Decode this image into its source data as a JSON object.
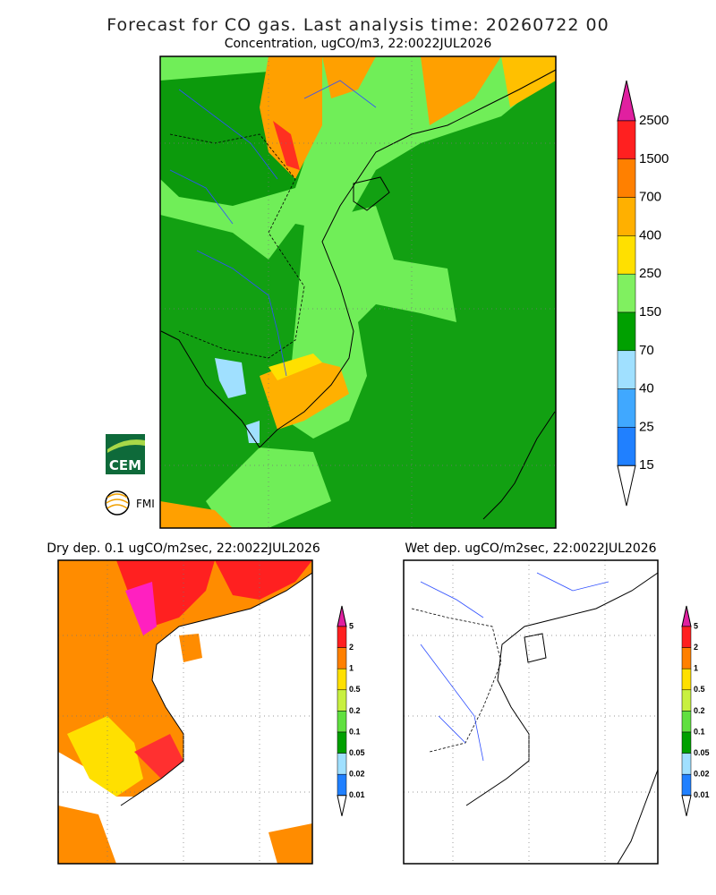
{
  "title": "Forecast for CO gas. Last analysis time: 20260722 00",
  "panels": [
    {
      "title": "Concentration, ugCO/m3, 22:0022JUL2026",
      "levels": [
        2500,
        1500,
        700,
        400,
        250,
        150,
        70,
        40,
        25,
        15
      ],
      "colors": [
        "#e020a0",
        "#ff2020",
        "#ff8000",
        "#ffb000",
        "#ffe000",
        "#80f060",
        "#00a000",
        "#a0e0ff",
        "#40a8ff",
        "#2080ff",
        "#ffffff"
      ]
    },
    {
      "title": "Dry dep. 0.1 ugCO/m2sec, 22:0022JUL2026",
      "levels": [
        5,
        2,
        1,
        0.5,
        0.2,
        0.1,
        0.05,
        0.02,
        0.01
      ],
      "colors": [
        "#e020a0",
        "#ff2020",
        "#ff8000",
        "#ffe000",
        "#c8f040",
        "#60e040",
        "#00a000",
        "#a0e0ff",
        "#2080ff",
        "#ffffff"
      ]
    },
    {
      "title": "Wet dep. ugCO/m2sec, 22:0022JUL2026",
      "levels": [
        5,
        2,
        1,
        0.5,
        0.2,
        0.1,
        0.05,
        0.02,
        0.01
      ],
      "colors": [
        "#e020a0",
        "#ff2020",
        "#ff8000",
        "#ffe000",
        "#c8f040",
        "#60e040",
        "#00a000",
        "#a0e0ff",
        "#2080ff",
        "#ffffff"
      ]
    }
  ],
  "logos": [
    "CEM",
    "FMI"
  ]
}
